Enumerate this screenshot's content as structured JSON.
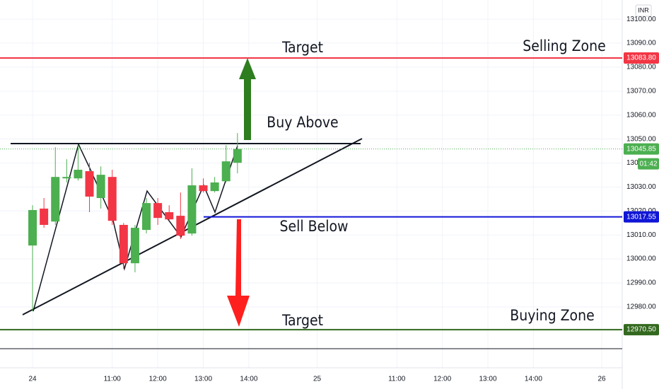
{
  "chart_data": {
    "type": "candlestick",
    "currency": "INR",
    "x": [
      0,
      1,
      2,
      3,
      4,
      5,
      6,
      7,
      8,
      9,
      10,
      11,
      12,
      13,
      14,
      15,
      16,
      17,
      18
    ],
    "open": [
      13005.6,
      13021,
      13015.6,
      13033.6,
      13033.6,
      13036.6,
      13025.4,
      13034.2,
      13014.2,
      12998.2,
      13012.1,
      13023.3,
      13019.5,
      13018,
      13010.6,
      13030.7,
      13028.3,
      13032.4,
      13040.1
    ],
    "high": [
      13022.4,
      13025.4,
      13046.6,
      13041.6,
      13047.5,
      13040.1,
      13038.6,
      13037.2,
      13015,
      13014.2,
      13025.4,
      13025.4,
      13022.4,
      13027.7,
      13037.8,
      13033.6,
      13034.2,
      13047.5,
      13052.5
    ],
    "low": [
      12978.2,
      13013,
      13014.2,
      13031.9,
      13032.7,
      13019.5,
      13021,
      13014.2,
      12995.9,
      12994.4,
      13010.6,
      13014.2,
      13015.9,
      13008.3,
      13009.7,
      13027.7,
      13027.7,
      13031.9,
      13035.7
    ],
    "close": [
      13020.4,
      13014.2,
      13034.2,
      13034.2,
      13037.2,
      13026,
      13035.1,
      13015.9,
      12998.2,
      13013,
      13023.3,
      13017.1,
      13016.5,
      13009.7,
      13030.7,
      13028.3,
      13031.9,
      13040.7,
      13045.85
    ],
    "up_color": "#4caf50",
    "down_color": "#f23645",
    "xlim": [
      -2.86,
      51.8
    ],
    "xticks": [
      {
        "value": 0,
        "label": "24"
      },
      {
        "value": 7,
        "label": "11:00"
      },
      {
        "value": 11,
        "label": "12:00"
      },
      {
        "value": 15,
        "label": "13:00"
      },
      {
        "value": 19,
        "label": "14:00"
      },
      {
        "value": 25,
        "label": "25"
      },
      {
        "value": 32,
        "label": "11:00"
      },
      {
        "value": 36,
        "label": "12:00"
      },
      {
        "value": 40,
        "label": "13:00"
      },
      {
        "value": 44,
        "label": "14:00"
      },
      {
        "value": 50,
        "label": "26"
      }
    ],
    "ylim": [
      12954.6,
      13108
    ],
    "yticks": [
      {
        "value": 13100,
        "label": "13100.00"
      },
      {
        "value": 13090,
        "label": "13090.00"
      },
      {
        "value": 13080,
        "label": "13080.00"
      },
      {
        "value": 13070,
        "label": "13070.00"
      },
      {
        "value": 13060,
        "label": "13060.00"
      },
      {
        "value": 13050,
        "label": "13050.00"
      },
      {
        "value": 13040,
        "label": "13040.00"
      },
      {
        "value": 13030,
        "label": "13030.00"
      },
      {
        "value": 13020,
        "label": "13020.00"
      },
      {
        "value": 13010,
        "label": "13010.00"
      },
      {
        "value": 13000,
        "label": "13000.00"
      },
      {
        "value": 12990,
        "label": "12990.00"
      },
      {
        "value": 12980,
        "label": "12980.00"
      }
    ],
    "grid": true,
    "price_lines": {
      "values": [
        13083.8,
        13045.85,
        13017.55,
        12970.5
      ],
      "value_labels": [
        "13083.80",
        "13045.85",
        "13017.55",
        "12970.50"
      ],
      "colors": [
        "#f23645",
        "#4caf50",
        "#1016d6",
        "#33691e"
      ]
    },
    "countdown": "01:42",
    "annotations": [
      "Target",
      "Selling Zone",
      "Buy Above",
      "Sell Below",
      "Target",
      "Buying Zone"
    ]
  }
}
